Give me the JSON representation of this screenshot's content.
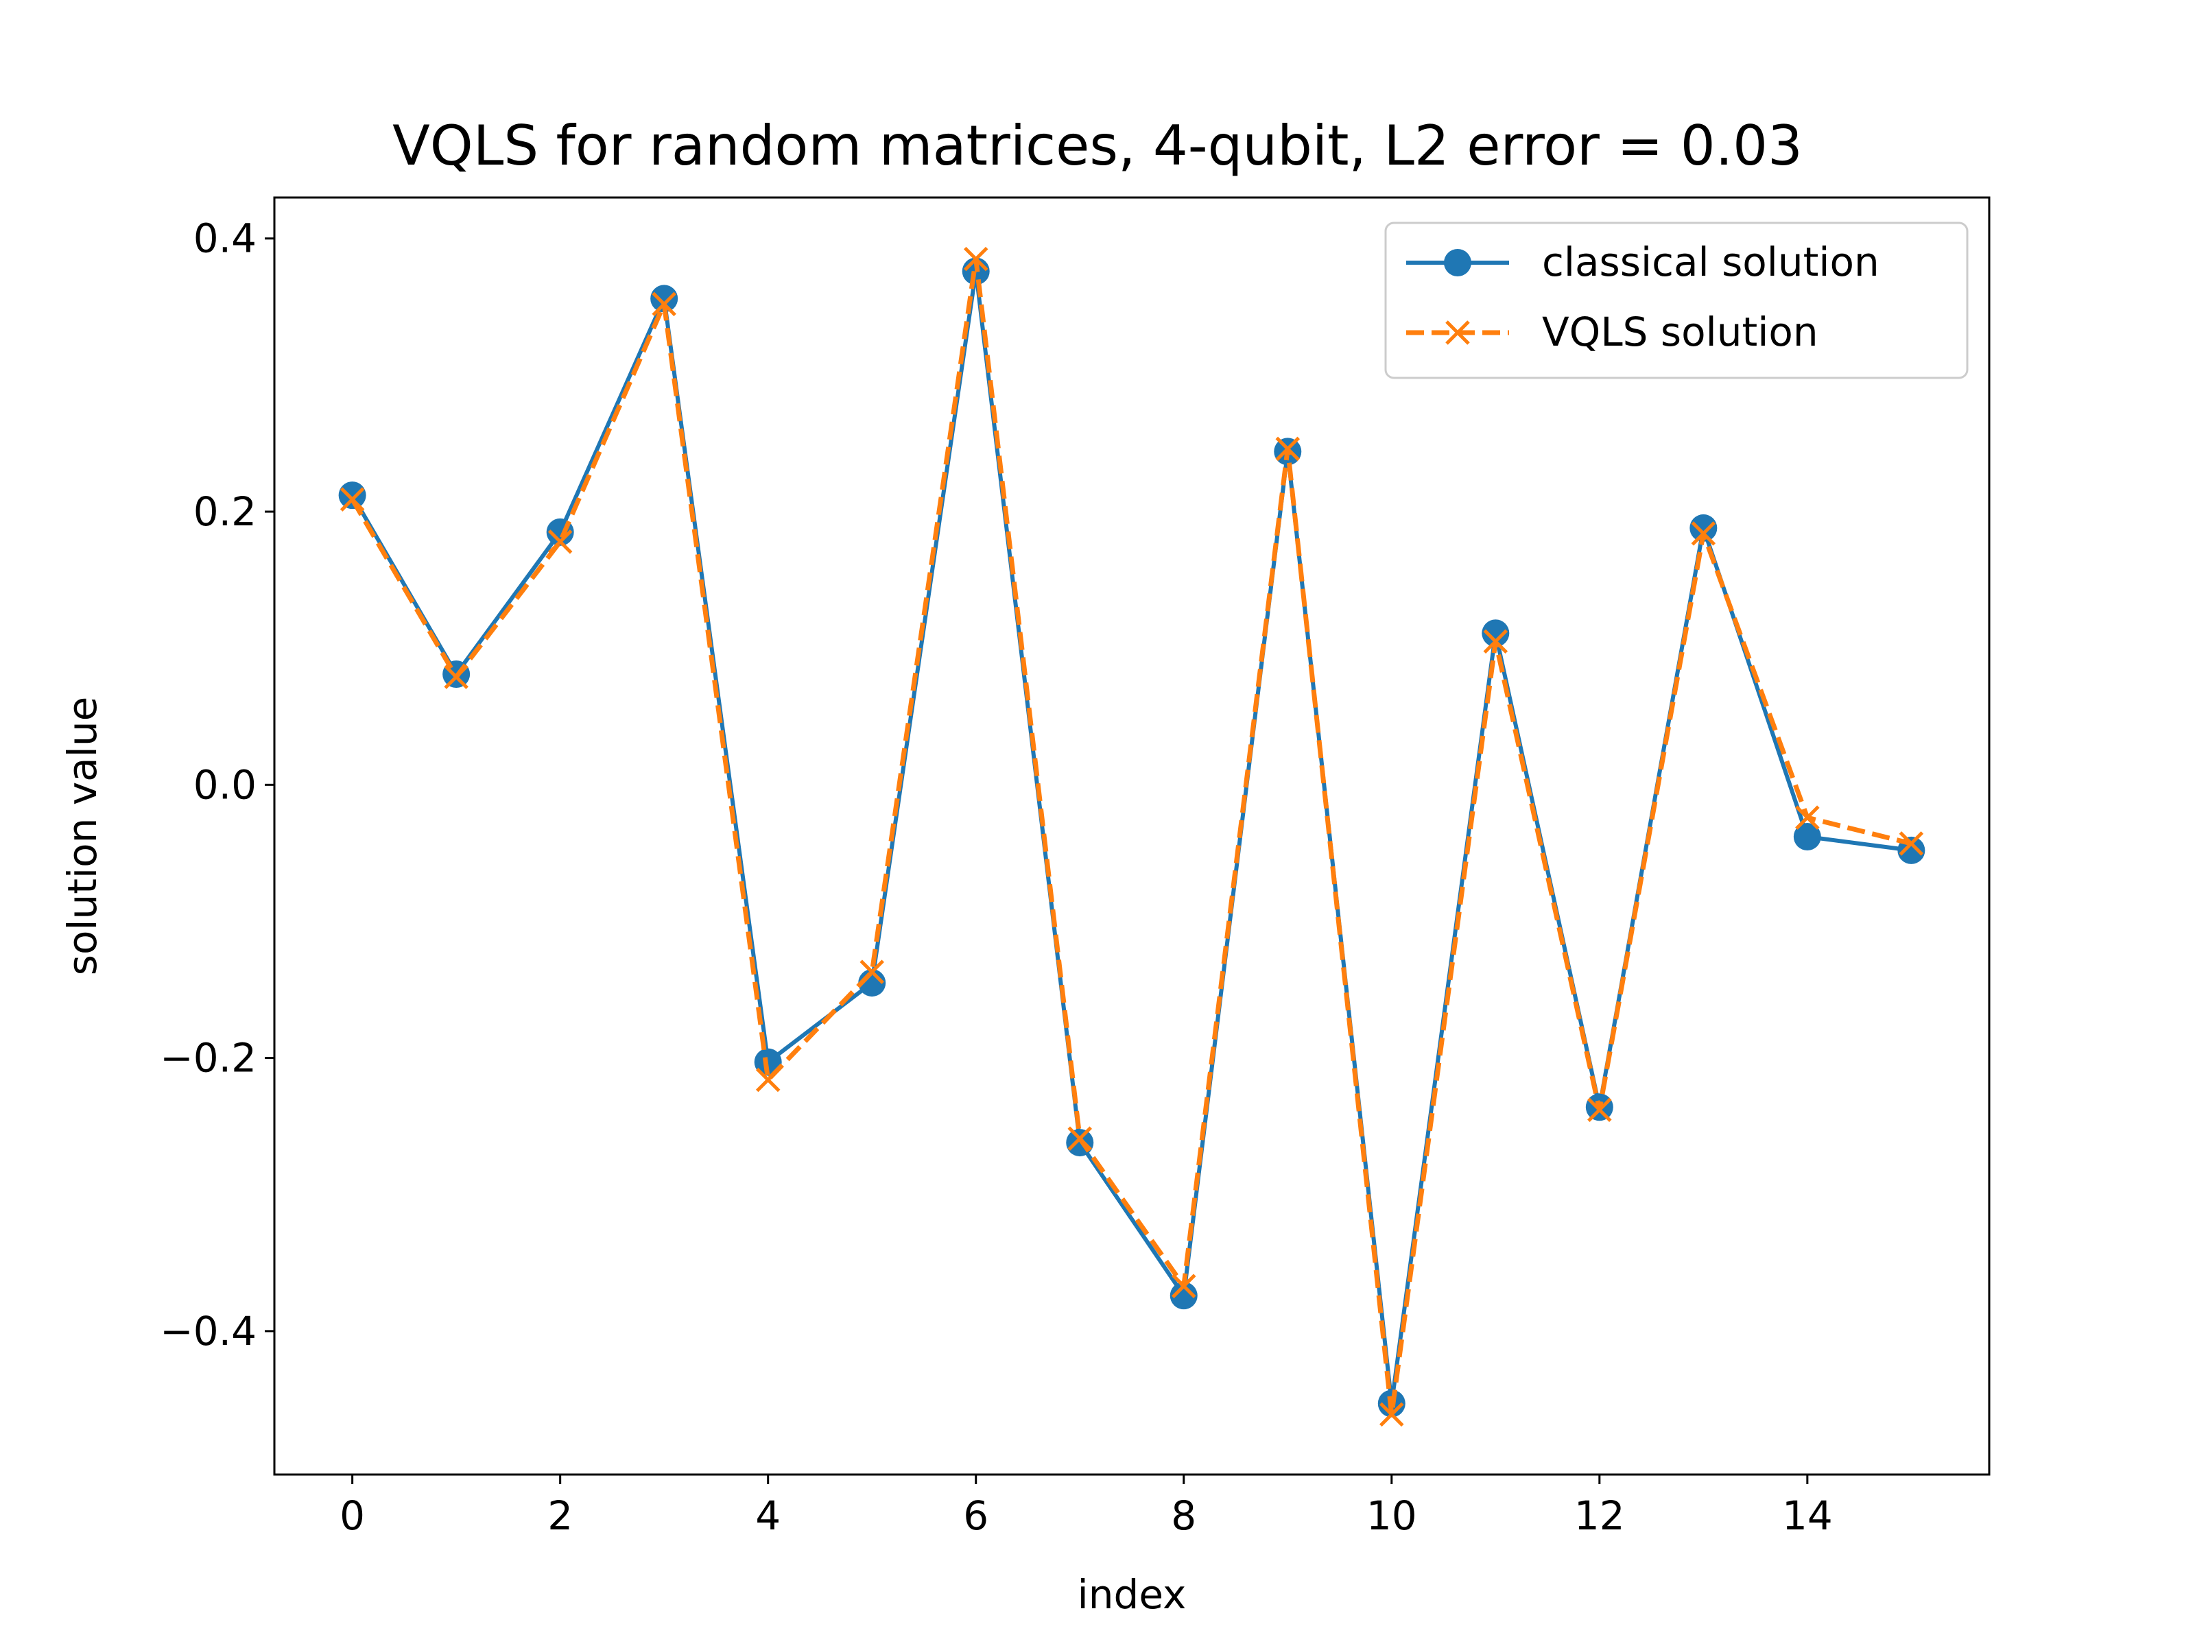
{
  "chart_data": {
    "type": "line",
    "title": "VQLS for random matrices, 4-qubit, L2 error = 0.03",
    "xlabel": "index",
    "ylabel": "solution value",
    "xlim": [
      -0.75,
      15.75
    ],
    "ylim": [
      -0.505,
      0.43
    ],
    "xticks": [
      0,
      2,
      4,
      6,
      8,
      10,
      12,
      14
    ],
    "yticks": [
      0.4,
      0.2,
      0.0,
      -0.2,
      -0.4
    ],
    "xtick_labels": [
      "0",
      "2",
      "4",
      "6",
      "8",
      "10",
      "12",
      "14"
    ],
    "ytick_labels": [
      "0.4",
      "0.2",
      "0.0",
      "−0.2",
      "−0.4"
    ],
    "grid": false,
    "legend_position": "top-right",
    "x": [
      0,
      1,
      2,
      3,
      4,
      5,
      6,
      7,
      8,
      9,
      10,
      11,
      12,
      13,
      14,
      15
    ],
    "series": [
      {
        "name": "classical solution",
        "color": "#1f77b4",
        "line_style": "solid",
        "marker": "circle",
        "values": [
          0.212,
          0.081,
          0.185,
          0.356,
          -0.203,
          -0.145,
          0.376,
          -0.262,
          -0.374,
          0.244,
          -0.453,
          0.111,
          -0.236,
          0.188,
          -0.038,
          -0.048
        ]
      },
      {
        "name": "VQLS solution",
        "color": "#ff7f0e",
        "line_style": "dashed",
        "marker": "x",
        "values": [
          0.209,
          0.079,
          0.178,
          0.352,
          -0.216,
          -0.137,
          0.385,
          -0.259,
          -0.367,
          0.246,
          -0.461,
          0.105,
          -0.238,
          0.184,
          -0.024,
          -0.043
        ]
      }
    ]
  }
}
